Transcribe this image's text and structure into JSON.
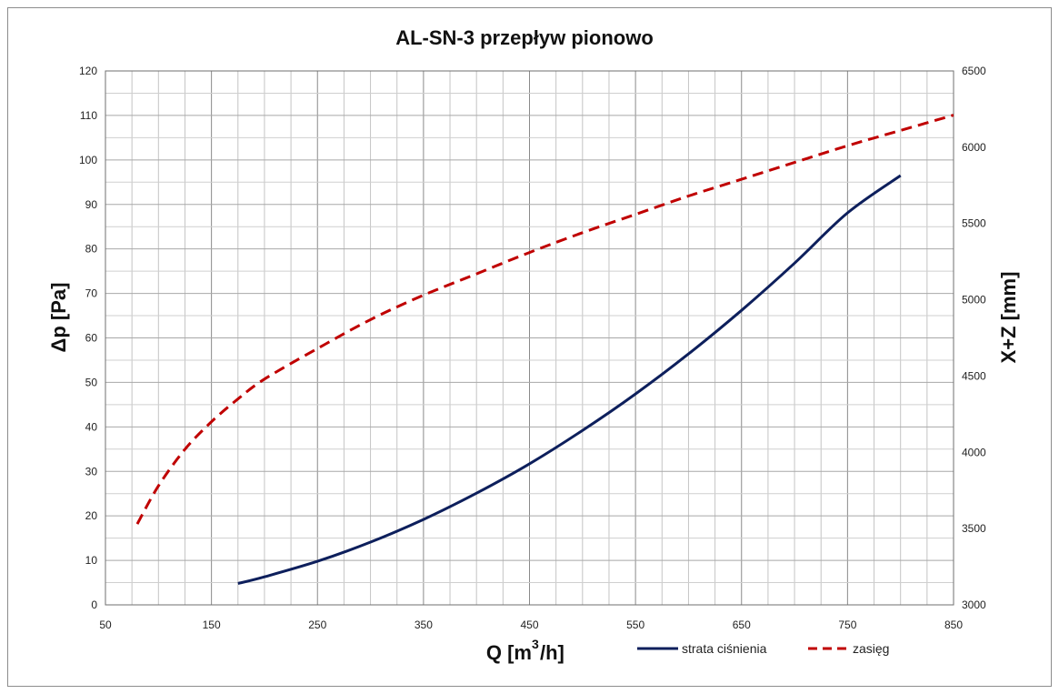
{
  "chart_data": {
    "type": "line",
    "title": "AL-SN-3 przepływ pionowo",
    "xlabel": "Q [m3/h]",
    "xlabel_parts": {
      "pre": "Q [m",
      "sup": "3",
      "post": "/h]"
    },
    "ylabel": "Δp [Pa]",
    "y2label": "X+Z [mm]",
    "xlim": [
      50,
      850
    ],
    "ylim": [
      0,
      120
    ],
    "y2lim": [
      3000,
      6500
    ],
    "x_ticks": [
      "50",
      "150",
      "250",
      "350",
      "450",
      "550",
      "650",
      "750",
      "850"
    ],
    "y_ticks": [
      "0",
      "10",
      "20",
      "30",
      "40",
      "50",
      "60",
      "70",
      "80",
      "90",
      "100",
      "110",
      "120"
    ],
    "y2_ticks": [
      "3000",
      "3500",
      "4000",
      "4500",
      "5000",
      "5500",
      "6000",
      "6500"
    ],
    "grid": true,
    "legend_position": "bottom-right",
    "series": [
      {
        "name": "strata ciśnienia",
        "axis": "left",
        "color": "#0d1f5c",
        "style": "solid",
        "x": [
          175,
          200,
          250,
          300,
          350,
          400,
          450,
          500,
          550,
          600,
          650,
          700,
          750,
          800
        ],
        "y": [
          4.8,
          6.3,
          9.8,
          14.1,
          19.2,
          25.1,
          31.7,
          39.2,
          47.4,
          56.4,
          66.2,
          76.8,
          88.1,
          96.5
        ]
      },
      {
        "name": "zasięg",
        "axis": "right",
        "color": "#c00000",
        "style": "dashed",
        "x": [
          80,
          100,
          125,
          150,
          175,
          200,
          250,
          300,
          350,
          400,
          450,
          500,
          550,
          600,
          650,
          700,
          750,
          800,
          850
        ],
        "y": [
          3530,
          3780,
          4020,
          4200,
          4350,
          4480,
          4680,
          4870,
          5030,
          5170,
          5310,
          5440,
          5560,
          5680,
          5790,
          5900,
          6010,
          6110,
          6210
        ]
      }
    ]
  }
}
